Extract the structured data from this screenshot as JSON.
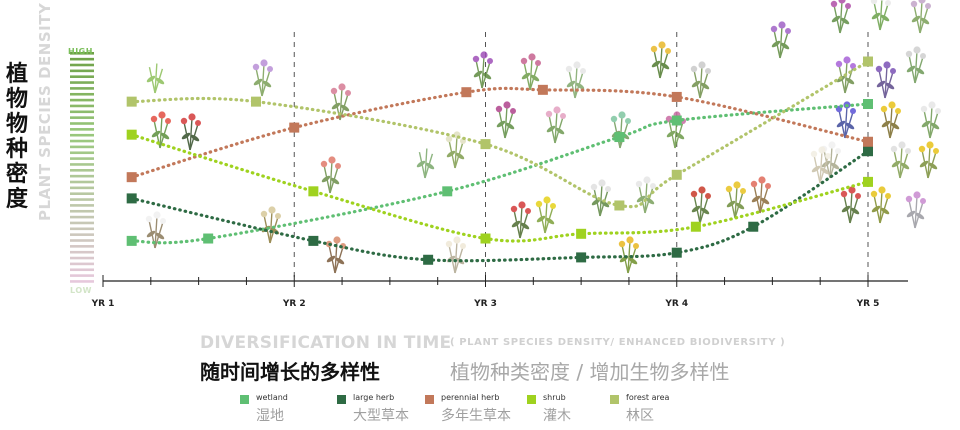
{
  "y_axis": {
    "label_cn": "植物物种密度",
    "label_en": "PLANT SPECIES DENSITY",
    "high_label": "HIGH",
    "low_label": "LOW"
  },
  "caption": {
    "title_en": "DIVERSIFICATION IN TIME",
    "subtitle_en": "( PLANT SPECIES DENSITY/ ENHANCED BIODIVERSITY )",
    "title_cn": "随时间增长的多样性",
    "subtitle_cn": "植物种类密度 / 增加生物多样性"
  },
  "legend": [
    {
      "label_en": "wetland",
      "label_cn": "湿地",
      "color": "#5fbf73"
    },
    {
      "label_en": "large herb",
      "label_cn": "大型草本",
      "color": "#2e6b44"
    },
    {
      "label_en": "perennial herb",
      "label_cn": "多年生草本",
      "color": "#c2785a"
    },
    {
      "label_en": "shrub",
      "label_cn": "灌木",
      "color": "#9fd21f"
    },
    {
      "label_en": "forest area",
      "label_cn": "林区",
      "color": "#b1c46a"
    }
  ],
  "chart_data": {
    "type": "line",
    "title": "DIVERSIFICATION IN TIME",
    "ylabel": "PLANT SPECIES DENSITY",
    "x_ticks": [
      "YR 1",
      "YR 2",
      "YR 3",
      "YR 4",
      "YR 5"
    ],
    "xlim": [
      1,
      5
    ],
    "ylim": [
      0,
      10
    ],
    "grid": "vertical dashed lines at YR 2, YR 3, YR 4, YR 5",
    "series": [
      {
        "name": "wetland",
        "color": "#5fbf73",
        "points": [
          [
            1.15,
            1.7
          ],
          [
            1.55,
            1.8
          ],
          [
            2.8,
            3.8
          ],
          [
            3.7,
            6.1
          ],
          [
            4.0,
            6.8
          ],
          [
            5.0,
            7.5
          ]
        ]
      },
      {
        "name": "large herb",
        "color": "#2e6b44",
        "points": [
          [
            1.15,
            3.5
          ],
          [
            2.1,
            1.7
          ],
          [
            2.7,
            0.9
          ],
          [
            3.5,
            1.0
          ],
          [
            4.0,
            1.2
          ],
          [
            4.4,
            2.3
          ],
          [
            5.0,
            5.5
          ]
        ]
      },
      {
        "name": "perennial herb",
        "color": "#c2785a",
        "points": [
          [
            1.15,
            4.4
          ],
          [
            2.0,
            6.5
          ],
          [
            2.9,
            8.0
          ],
          [
            3.3,
            8.1
          ],
          [
            4.0,
            7.8
          ],
          [
            5.0,
            5.9
          ]
        ]
      },
      {
        "name": "shrub",
        "color": "#9fd21f",
        "points": [
          [
            1.15,
            6.2
          ],
          [
            2.1,
            3.8
          ],
          [
            3.0,
            1.8
          ],
          [
            3.5,
            2.0
          ],
          [
            4.1,
            2.3
          ],
          [
            5.0,
            4.2
          ]
        ]
      },
      {
        "name": "forest area",
        "color": "#b1c46a",
        "points": [
          [
            1.15,
            7.6
          ],
          [
            1.8,
            7.6
          ],
          [
            3.0,
            5.8
          ],
          [
            3.7,
            3.2
          ],
          [
            4.0,
            4.5
          ],
          [
            5.0,
            9.3
          ]
        ]
      }
    ]
  }
}
